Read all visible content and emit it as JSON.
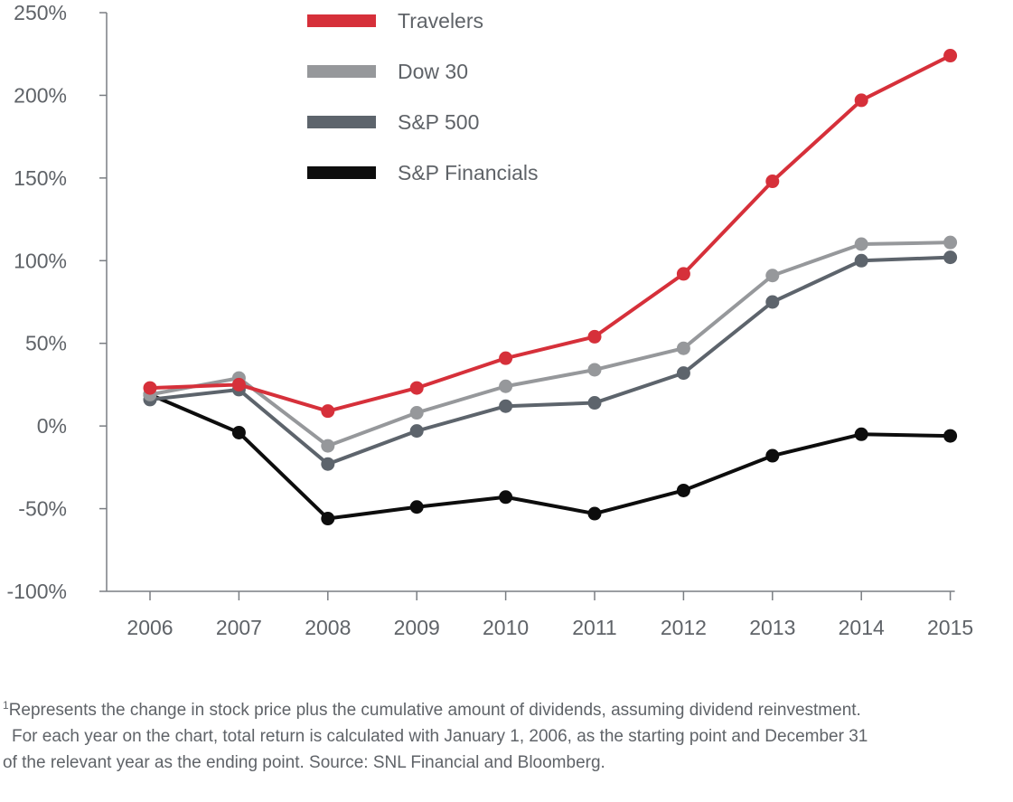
{
  "chart_data": {
    "type": "line",
    "x": [
      "2006",
      "2007",
      "2008",
      "2009",
      "2010",
      "2011",
      "2012",
      "2013",
      "2014",
      "2015"
    ],
    "ylim": [
      -100,
      250
    ],
    "yticks": [
      -100,
      -50,
      0,
      50,
      100,
      150,
      200,
      250
    ],
    "ytick_labels": [
      "-100%",
      "-50%",
      "0%",
      "50%",
      "100%",
      "150%",
      "200%",
      "250%"
    ],
    "grid": false,
    "legend_position": "top-center",
    "series": [
      {
        "name": "Travelers",
        "color": "#d6303a",
        "values": [
          23,
          25,
          9,
          23,
          41,
          54,
          92,
          148,
          197,
          224
        ]
      },
      {
        "name": "Dow 30",
        "color": "#96989b",
        "values": [
          19,
          29,
          -12,
          8,
          24,
          34,
          47,
          91,
          110,
          111
        ]
      },
      {
        "name": "S&P 500",
        "color": "#5d646c",
        "values": [
          16,
          22,
          -23,
          -3,
          12,
          14,
          32,
          75,
          100,
          102
        ]
      },
      {
        "name": "S&P Financials",
        "color": "#0d0d0d",
        "values": [
          19,
          -4,
          -56,
          -49,
          -43,
          -53,
          -39,
          -18,
          -5,
          -6
        ]
      }
    ]
  },
  "footnote": {
    "marker": "1",
    "lines": [
      "Represents the change in stock price plus the cumulative amount of dividends, assuming dividend reinvestment.",
      "For each year on the chart, total return is calculated with January 1, 2006, as the starting point and December 31",
      "of the relevant year as the ending point. Source: SNL Financial and Bloomberg."
    ]
  }
}
